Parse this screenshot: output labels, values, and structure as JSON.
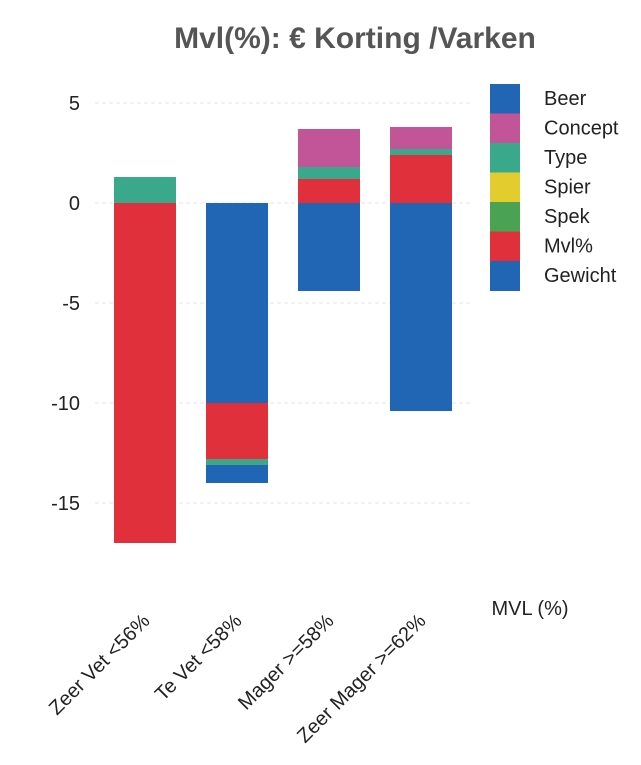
{
  "chart_data": {
    "type": "bar",
    "stacked": true,
    "title": "Mvl(%): € Korting /Varken",
    "xlabel": "MVL (%)",
    "ylabel": "",
    "ylim": [
      -17.5,
      6
    ],
    "yticks": [
      5,
      0,
      -5,
      -10,
      -15
    ],
    "grid": true,
    "legend_position": "right",
    "categories": [
      "Zeer Vet <56%",
      "Te Vet <58%",
      "Mager >=58%",
      "Zeer Mager >=62%"
    ],
    "series": [
      {
        "name": "Gewicht",
        "color": "#2166b5",
        "values": [
          0,
          -10.0,
          -4.4,
          -10.4
        ]
      },
      {
        "name": "Mvl%",
        "color": "#e0303c",
        "values": [
          -17.0,
          -2.8,
          1.2,
          2.4
        ]
      },
      {
        "name": "Spek",
        "color": "#4aa352",
        "values": [
          0,
          0,
          0,
          0
        ]
      },
      {
        "name": "Spier",
        "color": "#e2cc2e",
        "values": [
          0,
          0,
          0,
          0
        ]
      },
      {
        "name": "Type",
        "color": "#3aa88a",
        "values": [
          1.3,
          -0.3,
          0.6,
          0.3
        ]
      },
      {
        "name": "Concept",
        "color": "#c25498",
        "values": [
          0,
          0,
          1.9,
          1.1
        ]
      },
      {
        "name": "Beer",
        "color": "#2166b5",
        "values": [
          0,
          -0.9,
          0,
          0
        ]
      }
    ],
    "legend_order": [
      "Beer",
      "Concept",
      "Type",
      "Spier",
      "Spek",
      "Mvl%",
      "Gewicht"
    ]
  }
}
